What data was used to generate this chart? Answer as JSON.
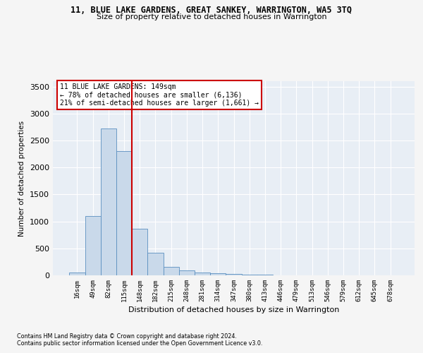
{
  "title": "11, BLUE LAKE GARDENS, GREAT SANKEY, WARRINGTON, WA5 3TQ",
  "subtitle": "Size of property relative to detached houses in Warrington",
  "xlabel": "Distribution of detached houses by size in Warrington",
  "ylabel": "Number of detached properties",
  "categories": [
    "16sqm",
    "49sqm",
    "82sqm",
    "115sqm",
    "148sqm",
    "182sqm",
    "215sqm",
    "248sqm",
    "281sqm",
    "314sqm",
    "347sqm",
    "380sqm",
    "413sqm",
    "446sqm",
    "479sqm",
    "513sqm",
    "546sqm",
    "579sqm",
    "612sqm",
    "645sqm",
    "678sqm"
  ],
  "values": [
    50,
    1100,
    2720,
    2310,
    870,
    420,
    155,
    90,
    55,
    40,
    30,
    12,
    8,
    6,
    5,
    4,
    3,
    2,
    2,
    1,
    1
  ],
  "bar_color": "#c9d9ea",
  "bar_edge_color": "#5a8fc0",
  "vline_index": 4,
  "vline_color": "#cc0000",
  "annotation_text": "11 BLUE LAKE GARDENS: 149sqm\n← 78% of detached houses are smaller (6,136)\n21% of semi-detached houses are larger (1,661) →",
  "annotation_box_facecolor": "#ffffff",
  "annotation_box_edgecolor": "#cc0000",
  "ylim": [
    0,
    3600
  ],
  "yticks": [
    0,
    500,
    1000,
    1500,
    2000,
    2500,
    3000,
    3500
  ],
  "plot_bg_color": "#e8eef5",
  "grid_color": "#ffffff",
  "fig_bg_color": "#f5f5f5",
  "footer1": "Contains HM Land Registry data © Crown copyright and database right 2024.",
  "footer2": "Contains public sector information licensed under the Open Government Licence v3.0."
}
